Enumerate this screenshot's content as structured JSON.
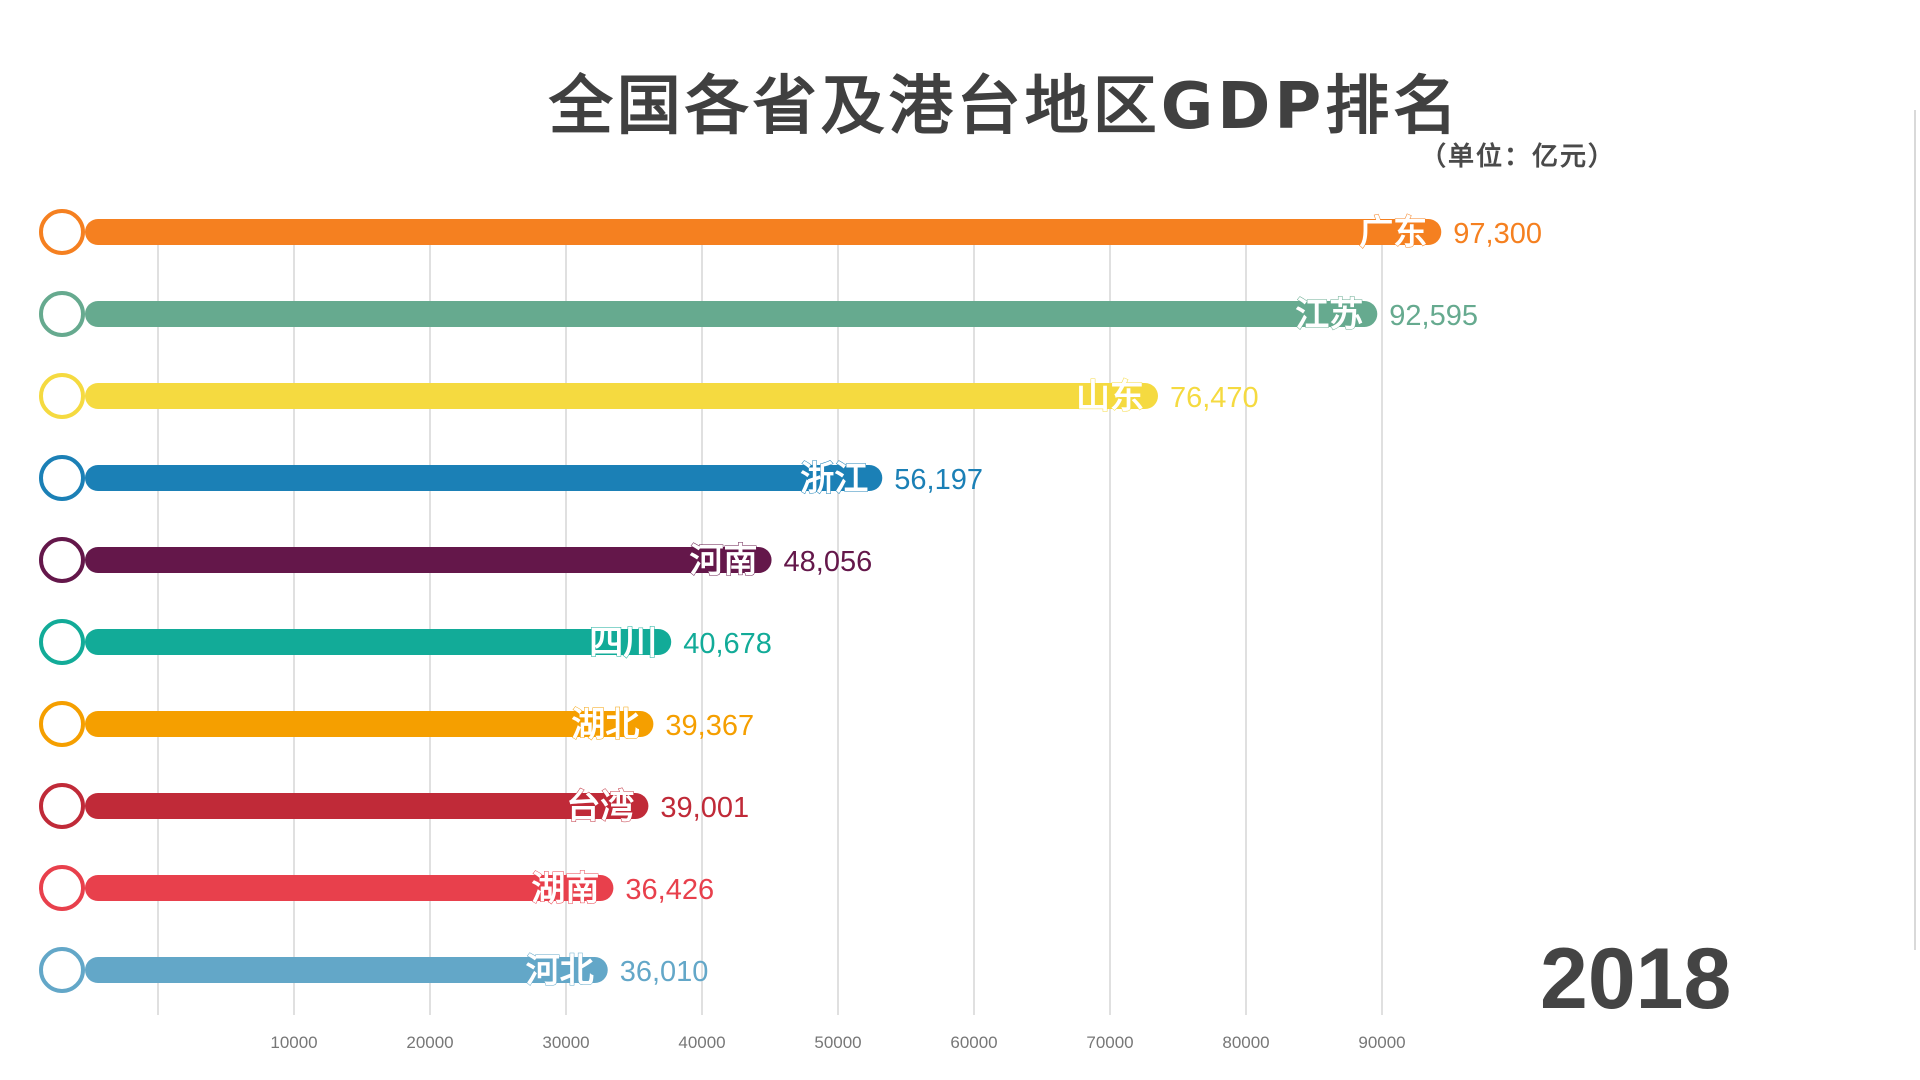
{
  "title": "全国各省及港台地区GDP排名",
  "unit": "（单位：亿元）",
  "year": "2018",
  "chart_data": {
    "type": "bar",
    "orientation": "horizontal",
    "categories": [
      "广东",
      "江苏",
      "山东",
      "浙江",
      "河南",
      "四川",
      "湖北",
      "台湾",
      "湖南",
      "河北"
    ],
    "values": [
      97300,
      92595,
      76470,
      56197,
      48056,
      40678,
      39367,
      39001,
      36426,
      36010
    ],
    "value_labels": [
      "97,300",
      "92,595",
      "76,470",
      "56,197",
      "48,056",
      "40,678",
      "39,367",
      "39,001",
      "36,426",
      "36,010"
    ],
    "colors": [
      "#f58020",
      "#66aa8f",
      "#f5da40",
      "#1b80b6",
      "#64174a",
      "#12ab98",
      "#f59f00",
      "#c02a38",
      "#e8404c",
      "#63a7c8"
    ],
    "xticks": [
      10000,
      20000,
      30000,
      40000,
      50000,
      60000,
      70000,
      80000,
      90000
    ],
    "xtick_labels": [
      "10000",
      "20000",
      "30000",
      "40000",
      "50000",
      "60000",
      "70000",
      "80000",
      "90000"
    ],
    "xlim": [
      0,
      100000
    ],
    "grid": true,
    "legend": "none"
  }
}
